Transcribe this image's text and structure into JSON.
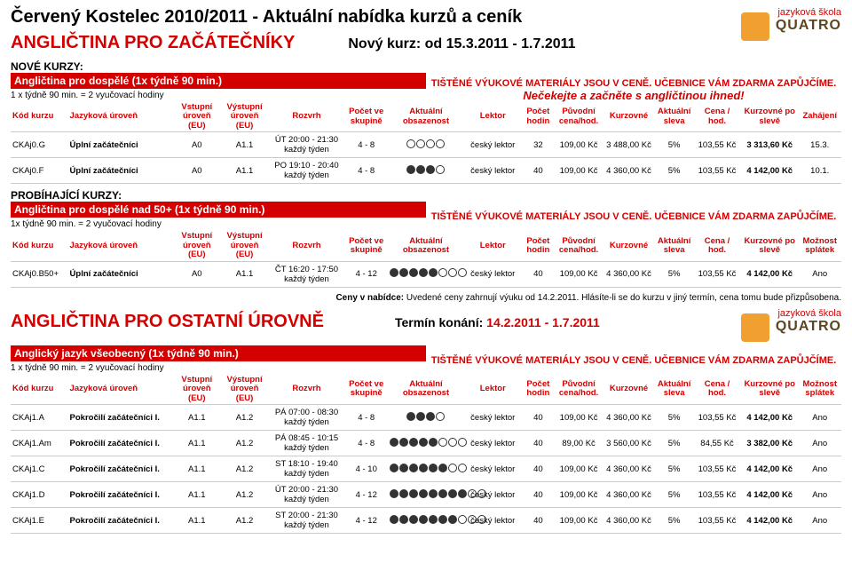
{
  "header": {
    "main_title": "Červený Kostelec 2010/2011 - Aktuální nabídka kurzů a ceník",
    "red_title": "ANGLIČTINA PRO ZAČÁTEČNÍKY",
    "new_course": "Nový kurz: od 15.3.2011 - 1.7.2011",
    "logo_top": "jazyková škola",
    "logo_bottom": "QUATRO"
  },
  "section1": {
    "label": "NOVÉ KURZY:",
    "bar": "Angličtina pro dospělé (1x týdně 90 min.)",
    "note": "1 x týdně 90 min. = 2 vyučovací hodiny",
    "msg1": "TIŠTĚNÉ VÝUKOVÉ MATERIÁLY JSOU V CENĚ. UČEBNICE VÁM ZDARMA ZAPŮJČÍME.",
    "msg2": "Nečekejte a začněte s angličtinou ihned!"
  },
  "cols1": {
    "c0": "Kód kurzu",
    "c1": "Jazyková úroveň",
    "c2": "Vstupní úroveň (EU)",
    "c3": "Výstupní úroveň (EU)",
    "c4": "Rozvrh",
    "c5": "Počet ve skupině",
    "c6": "Aktuální obsazenost",
    "c7": "Lektor",
    "c8": "Počet hodin",
    "c9": "Původní cena/hod.",
    "c10": "Kurzovné",
    "c11": "Aktuální sleva",
    "c12": "Cena / hod.",
    "c13": "Kurzovné po slevě",
    "c14": "Zahájení"
  },
  "rows1": [
    {
      "code": "CKAj0.G",
      "level": "Úplní začátečníci",
      "in": "A0",
      "out": "A1.1",
      "sched": "ÚT 20:00 - 21:30 každý týden",
      "size": "4 - 8",
      "occ": [
        0,
        0,
        0,
        0
      ],
      "lector": "český lektor",
      "hours": "32",
      "orig": "109,00 Kč",
      "full": "3 488,00 Kč",
      "disc": "5%",
      "per": "103,55 Kč",
      "after": "3 313,60 Kč",
      "start": "15.3."
    },
    {
      "code": "CKAj0.F",
      "level": "Úplní začátečníci",
      "in": "A0",
      "out": "A1.1",
      "sched": "PO 19:10 - 20:40 každý týden",
      "size": "4 - 8",
      "occ": [
        1,
        1,
        1,
        0
      ],
      "lector": "český lektor",
      "hours": "40",
      "orig": "109,00 Kč",
      "full": "4 360,00 Kč",
      "disc": "5%",
      "per": "103,55 Kč",
      "after": "4 142,00 Kč",
      "start": "10.1."
    }
  ],
  "section2": {
    "label": "PROBÍHAJÍCÍ KURZY:",
    "bar": "Angličtina pro dospělé nad 50+ (1x týdně 90 min.)",
    "note": "1x týdně 90 min. = 2 vyučovací hodiny",
    "msg1": "TIŠTĚNÉ VÝUKOVÉ MATERIÁLY JSOU V CENĚ. UČEBNICE VÁM ZDARMA ZAPŮJČÍME."
  },
  "cols2_extra": "Možnost splátek",
  "rows2": [
    {
      "code": "CKAj0.B50+",
      "level": "Úplní začátečníci",
      "in": "A0",
      "out": "A1.1",
      "sched": "ČT 16:20 - 17:50 každý týden",
      "size": "4 - 12",
      "occ": [
        1,
        1,
        1,
        1,
        1,
        0,
        0,
        0
      ],
      "lector": "český lektor",
      "hours": "40",
      "orig": "109,00 Kč",
      "full": "4 360,00 Kč",
      "disc": "5%",
      "per": "103,55 Kč",
      "after": "4 142,00 Kč",
      "splat": "Ano"
    }
  ],
  "pricenote": {
    "pre": "Ceny v nabídce: ",
    "txt": "Uvedené ceny zahrnují výuku od 14.2.2011. Hlásíte-li se do kurzu v jiný termín, cena tomu bude přizpůsobena."
  },
  "header2": {
    "red_title": "ANGLIČTINA PRO OSTATNÍ ÚROVNĚ",
    "term_label": "Termín konání: ",
    "term_val": "14.2.2011 - 1.7.2011"
  },
  "section3": {
    "bar": "Anglický jazyk všeobecný (1x týdně 90 min.)",
    "note": "1 x týdně 90 min. = 2 vyučovací hodiny",
    "msg1": "TIŠTĚNÉ VÝUKOVÉ MATERIÁLY JSOU V CENĚ. UČEBNICE VÁM ZDARMA ZAPŮJČÍME."
  },
  "rows3": [
    {
      "code": "CKAj1.A",
      "level": "Pokročilí začátečníci I.",
      "in": "A1.1",
      "out": "A1.2",
      "sched": "PÁ 07:00 - 08:30 každý týden",
      "size": "4 - 8",
      "occ": [
        1,
        1,
        1,
        0
      ],
      "lector": "český lektor",
      "hours": "40",
      "orig": "109,00 Kč",
      "full": "4 360,00 Kč",
      "disc": "5%",
      "per": "103,55 Kč",
      "after": "4 142,00 Kč",
      "splat": "Ano"
    },
    {
      "code": "CKAj1.Am",
      "level": "Pokročilí začátečníci I.",
      "in": "A1.1",
      "out": "A1.2",
      "sched": "PÁ 08:45 - 10:15 každý týden",
      "size": "4 - 8",
      "occ": [
        1,
        1,
        1,
        1,
        1,
        0,
        0,
        0
      ],
      "lector": "český lektor",
      "hours": "40",
      "orig": "89,00 Kč",
      "full": "3 560,00 Kč",
      "disc": "5%",
      "per": "84,55 Kč",
      "after": "3 382,00 Kč",
      "splat": "Ano"
    },
    {
      "code": "CKAj1.C",
      "level": "Pokročilí začátečníci I.",
      "in": "A1.1",
      "out": "A1.2",
      "sched": "ST 18:10 - 19:40 každý týden",
      "size": "4 - 10",
      "occ": [
        1,
        1,
        1,
        1,
        1,
        1,
        0,
        0
      ],
      "lector": "český lektor",
      "hours": "40",
      "orig": "109,00 Kč",
      "full": "4 360,00 Kč",
      "disc": "5%",
      "per": "103,55 Kč",
      "after": "4 142,00 Kč",
      "splat": "Ano"
    },
    {
      "code": "CKAj1.D",
      "level": "Pokročilí začátečníci I.",
      "in": "A1.1",
      "out": "A1.2",
      "sched": "ÚT 20:00 - 21:30 každý týden",
      "size": "4 - 12",
      "occ": [
        1,
        1,
        1,
        1,
        1,
        1,
        1,
        1,
        0,
        0
      ],
      "lector": "český lektor",
      "hours": "40",
      "orig": "109,00 Kč",
      "full": "4 360,00 Kč",
      "disc": "5%",
      "per": "103,55 Kč",
      "after": "4 142,00 Kč",
      "splat": "Ano"
    },
    {
      "code": "CKAj1.E",
      "level": "Pokročilí začátečníci I.",
      "in": "A1.1",
      "out": "A1.2",
      "sched": "ST 20:00 - 21:30 každý týden",
      "size": "4 - 12",
      "occ": [
        1,
        1,
        1,
        1,
        1,
        1,
        1,
        0,
        0,
        0
      ],
      "lector": "český lektor",
      "hours": "40",
      "orig": "109,00 Kč",
      "full": "4 360,00 Kč",
      "disc": "5%",
      "per": "103,55 Kč",
      "after": "4 142,00 Kč",
      "splat": "Ano"
    }
  ]
}
